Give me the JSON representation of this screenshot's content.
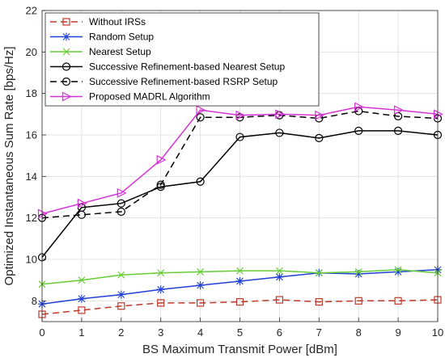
{
  "chart_data": {
    "type": "line",
    "title": "",
    "xlabel": "BS Maximum Transmit Power [dBm]",
    "ylabel": "Optimized Instantaneous Sum Rate [bps/Hz]",
    "xlim": [
      0,
      10
    ],
    "ylim": [
      7,
      22
    ],
    "x_ticks": [
      "0",
      "1",
      "2",
      "3",
      "4",
      "5",
      "6",
      "7",
      "8",
      "9",
      "10"
    ],
    "y_ticks": [
      "8",
      "10",
      "12",
      "14",
      "16",
      "18",
      "20",
      "22"
    ],
    "grid": true,
    "legend_position": "top-left",
    "x": [
      0,
      1,
      2,
      3,
      4,
      5,
      6,
      7,
      8,
      9,
      10
    ],
    "series": [
      {
        "name": "Without IRSs",
        "color": "#c0392b",
        "marker": "square",
        "dash": "dashed",
        "values": [
          7.35,
          7.55,
          7.75,
          7.9,
          7.9,
          7.95,
          8.05,
          7.95,
          8.0,
          8.0,
          8.05
        ]
      },
      {
        "name": "Random Setup",
        "color": "#1f3fd6",
        "marker": "asterisk",
        "dash": "solid",
        "values": [
          7.85,
          8.1,
          8.3,
          8.55,
          8.75,
          8.95,
          9.15,
          9.35,
          9.3,
          9.4,
          9.5
        ]
      },
      {
        "name": "Nearest Setup",
        "color": "#66cc33",
        "marker": "x",
        "dash": "solid",
        "values": [
          8.8,
          9.0,
          9.25,
          9.35,
          9.4,
          9.45,
          9.45,
          9.35,
          9.4,
          9.5,
          9.35
        ]
      },
      {
        "name": "Successive Refinement-based Nearest Setup",
        "color": "#000000",
        "marker": "circle",
        "dash": "solid",
        "values": [
          10.1,
          12.5,
          12.7,
          13.5,
          13.75,
          15.9,
          16.1,
          15.85,
          16.2,
          16.2,
          16.0
        ]
      },
      {
        "name": "Successive Refinement-based RSRP Setup",
        "color": "#000000",
        "marker": "circle",
        "dash": "dashed",
        "values": [
          12.0,
          12.15,
          12.3,
          13.6,
          16.85,
          16.85,
          16.95,
          16.8,
          17.15,
          16.9,
          16.8
        ]
      },
      {
        "name": "Proposed MADRL Algorithm",
        "color": "#d633d6",
        "marker": "triangle-right",
        "dash": "solid",
        "values": [
          12.2,
          12.7,
          13.2,
          14.8,
          17.2,
          16.95,
          17.0,
          16.95,
          17.35,
          17.2,
          17.0
        ]
      }
    ]
  }
}
